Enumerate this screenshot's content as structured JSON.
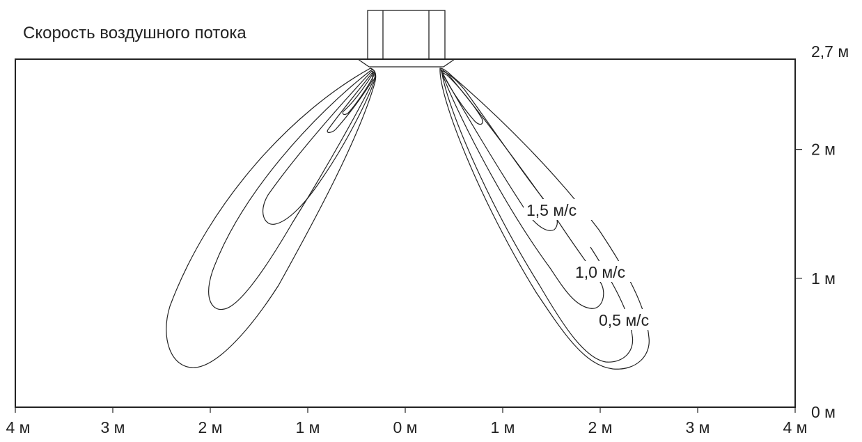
{
  "title": "Скорость воздушного потока",
  "chart_data": {
    "type": "contour",
    "title": "Скорость воздушного потока",
    "x_axis": {
      "tick_labels": [
        "4 м",
        "3 м",
        "2 м",
        "1 м",
        "0 м",
        "1 м",
        "2 м",
        "3 м",
        "4 м"
      ],
      "range_m": [
        -4,
        4
      ]
    },
    "y_axis": {
      "position": "right",
      "tick_labels": [
        "0 м",
        "1 м",
        "2 м",
        "2,7 м"
      ],
      "range_m": [
        0,
        2.7
      ]
    },
    "contour_labels": [
      "1,5 м/с",
      "1,0 м/с",
      "0,5 м/с"
    ],
    "series": [
      {
        "label": "0,5 м/с",
        "reach_x_m": 2.2,
        "lowest_y_m": 0.3
      },
      {
        "label": "1,0 м/с",
        "reach_x_m": 1.95,
        "lowest_y_m": 0.85
      },
      {
        "label": "1,5 м/с",
        "reach_x_m": 1.5,
        "lowest_y_m": 1.5
      }
    ]
  }
}
